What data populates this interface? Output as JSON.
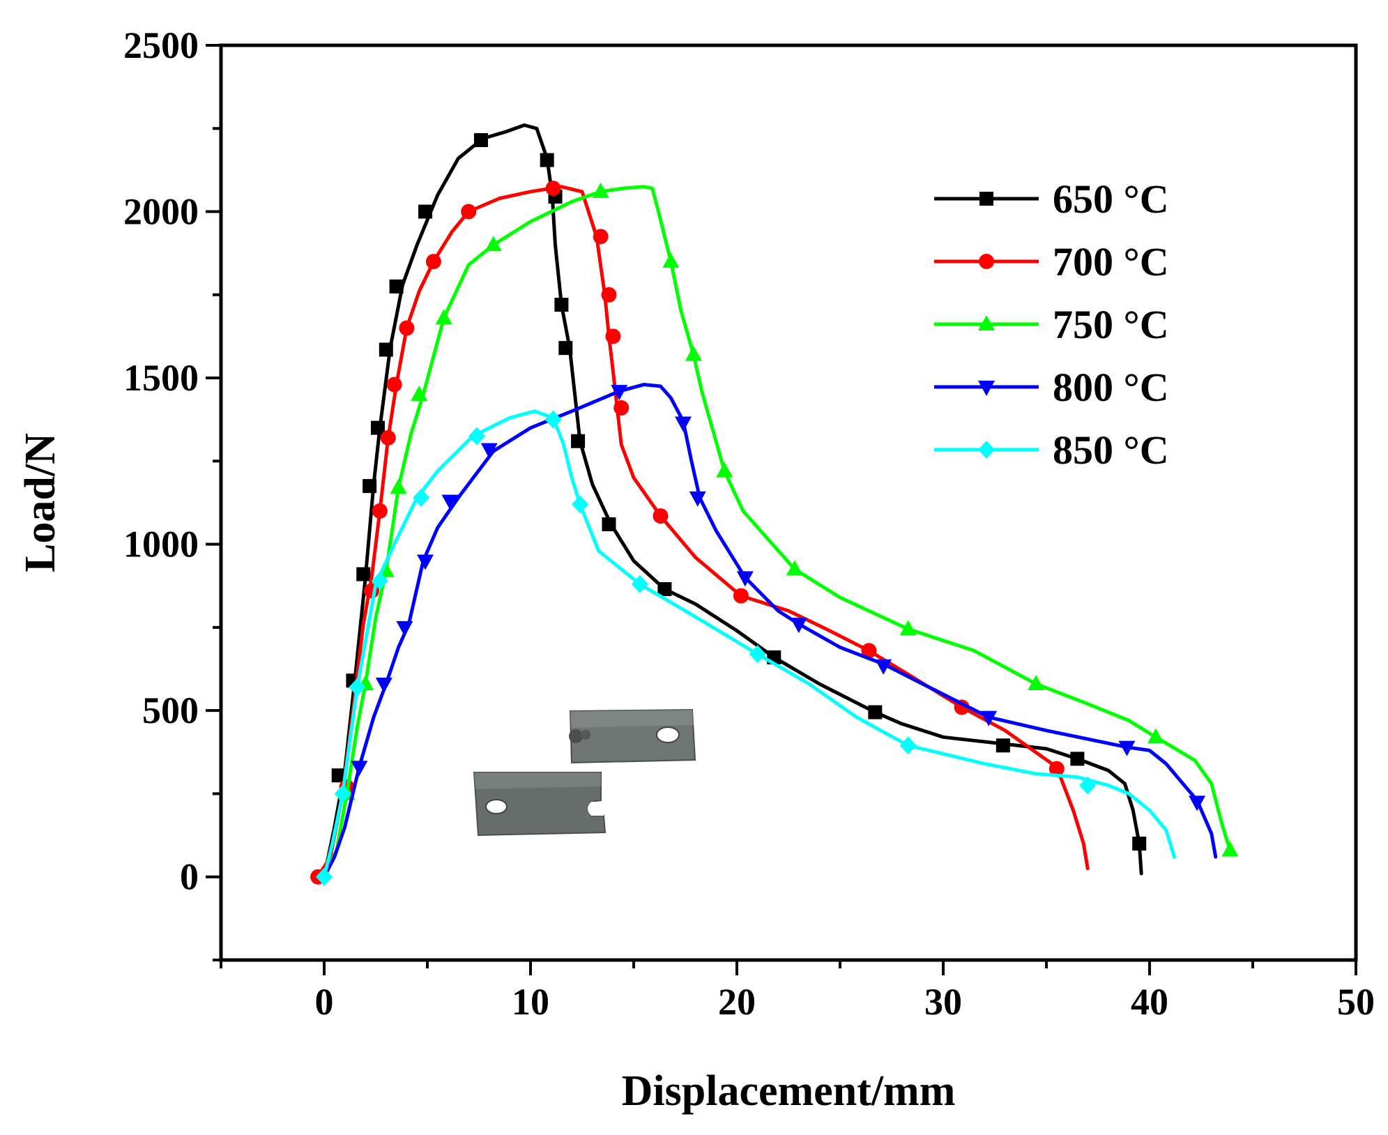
{
  "chart_data": {
    "type": "line",
    "title": "",
    "xlabel": "Displacement/mm",
    "ylabel": "Load/N",
    "xlim": [
      -5,
      50
    ],
    "ylim": [
      -250,
      2500
    ],
    "xticks": [
      "0",
      "10",
      "20",
      "30",
      "40",
      "50"
    ],
    "yticks": [
      "0",
      "500",
      "1000",
      "1500",
      "2000",
      "2500"
    ],
    "legend_position": "top-right",
    "inset": "photograph of two fractured lap-joint specimens",
    "series": [
      {
        "name": "650 °C",
        "color": "#000000",
        "marker": "square",
        "x": [
          0,
          0.5,
          1,
          1.5,
          2,
          2.4,
          2.7,
          3.2,
          3.8,
          4.5,
          5.5,
          6.5,
          7.7,
          8.8,
          9.7,
          10.3,
          10.8,
          11.05,
          11.2,
          11.5,
          11.9,
          12.4,
          13,
          13.9,
          15,
          16.5,
          18,
          20,
          21.8,
          24,
          26.7,
          28,
          30,
          32.9,
          35,
          36.5,
          38,
          38.8,
          39.2,
          39.5,
          39.6
        ],
        "y": [
          0,
          150,
          320,
          600,
          900,
          1180,
          1350,
          1590,
          1780,
          1900,
          2050,
          2160,
          2220,
          2240,
          2260,
          2250,
          2160,
          2050,
          1900,
          1720,
          1590,
          1310,
          1180,
          1060,
          950,
          865,
          820,
          740,
          660,
          580,
          495,
          460,
          420,
          400,
          385,
          355,
          320,
          280,
          200,
          100,
          10
        ],
        "marker_x": [
          0.7,
          1.4,
          1.9,
          2.2,
          2.6,
          3.0,
          3.5,
          4.9,
          7.6,
          10.8,
          11.2,
          11.5,
          11.7,
          12.3,
          13.8,
          16.5,
          21.8,
          26.7,
          32.9,
          36.5,
          39.5
        ],
        "marker_y": [
          305,
          590,
          910,
          1175,
          1350,
          1585,
          1775,
          2000,
          2215,
          2155,
          2045,
          1720,
          1590,
          1310,
          1060,
          865,
          660,
          495,
          395,
          355,
          100
        ]
      },
      {
        "name": "700 °C",
        "color": "#ff0000",
        "marker": "circle",
        "x": [
          -0.3,
          0.3,
          0.9,
          1.4,
          1.9,
          2.3,
          2.7,
          3.1,
          3.5,
          4.0,
          4.6,
          5.3,
          6.2,
          7.0,
          8.5,
          10,
          11.5,
          12.5,
          13.2,
          13.6,
          13.8,
          14.0,
          14.2,
          14.4,
          15,
          16.3,
          18,
          20.2,
          22.5,
          24.5,
          26.4,
          28,
          30.9,
          33,
          35.5,
          36.3,
          36.8,
          37.0
        ],
        "y": [
          0,
          60,
          250,
          500,
          760,
          900,
          1100,
          1320,
          1480,
          1650,
          1760,
          1850,
          1940,
          2000,
          2040,
          2060,
          2075,
          2060,
          1925,
          1750,
          1625,
          1520,
          1410,
          1300,
          1200,
          1085,
          960,
          845,
          800,
          740,
          680,
          620,
          510,
          440,
          330,
          200,
          100,
          25
        ],
        "marker_x": [
          -0.3,
          1.1,
          2.3,
          2.7,
          3.1,
          3.4,
          4.0,
          5.3,
          7.0,
          11.1,
          13.4,
          13.8,
          14.0,
          14.4,
          16.3,
          20.2,
          26.4,
          30.9,
          35.5
        ],
        "marker_y": [
          0,
          270,
          860,
          1100,
          1320,
          1480,
          1650,
          1850,
          2000,
          2070,
          1925,
          1750,
          1625,
          1410,
          1085,
          845,
          680,
          510,
          325
        ]
      },
      {
        "name": "750 °C",
        "color": "#00ff00",
        "marker": "triangle-up",
        "x": [
          0,
          0.6,
          1.1,
          1.6,
          2.0,
          2.5,
          3.0,
          3.6,
          4.2,
          4.8,
          5.8,
          7,
          8.2,
          10,
          12,
          13.4,
          14.5,
          15.5,
          15.9,
          16.2,
          16.8,
          17.3,
          17.9,
          18.3,
          19.4,
          20.3,
          22.8,
          25,
          28.3,
          31.5,
          34.5,
          37,
          39,
          40.3,
          42.2,
          43,
          43.5,
          43.9
        ],
        "y": [
          0,
          80,
          250,
          450,
          580,
          780,
          920,
          1170,
          1330,
          1450,
          1680,
          1840,
          1900,
          1970,
          2030,
          2060,
          2070,
          2075,
          2070,
          2000,
          1850,
          1700,
          1570,
          1460,
          1220,
          1100,
          925,
          840,
          745,
          680,
          580,
          520,
          470,
          420,
          350,
          280,
          160,
          80
        ],
        "marker_x": [
          1.1,
          2.0,
          3.0,
          3.6,
          4.6,
          5.8,
          8.2,
          13.4,
          16.8,
          17.9,
          19.4,
          22.8,
          28.3,
          34.5,
          40.3,
          43.9
        ],
        "marker_y": [
          250,
          580,
          920,
          1170,
          1450,
          1680,
          1900,
          2060,
          1850,
          1570,
          1220,
          925,
          745,
          580,
          420,
          80
        ]
      },
      {
        "name": "800 °C",
        "color": "#0000ff",
        "marker": "triangle-down",
        "x": [
          0,
          0.5,
          1.0,
          1.7,
          2.4,
          3.0,
          3.6,
          4.1,
          4.8,
          5.5,
          6.5,
          8.2,
          10,
          12,
          14.3,
          15.5,
          16.3,
          16.8,
          17.4,
          17.8,
          18.2,
          19,
          20.4,
          22,
          23,
          25,
          27.1,
          29,
          32.2,
          35,
          38.9,
          40,
          40.8,
          42.3,
          43.0,
          43.2
        ],
        "y": [
          0,
          60,
          150,
          330,
          480,
          580,
          690,
          760,
          950,
          1050,
          1140,
          1280,
          1350,
          1400,
          1460,
          1480,
          1475,
          1440,
          1370,
          1250,
          1140,
          1040,
          900,
          800,
          760,
          690,
          640,
          580,
          480,
          440,
          390,
          380,
          340,
          230,
          130,
          60
        ],
        "marker_x": [
          1.7,
          2.9,
          3.9,
          4.9,
          6.1,
          8.0,
          14.3,
          17.4,
          18.1,
          20.4,
          23.0,
          27.1,
          32.2,
          38.9,
          42.3
        ],
        "marker_y": [
          330,
          580,
          750,
          950,
          1130,
          1285,
          1460,
          1365,
          1140,
          900,
          760,
          635,
          480,
          390,
          225
        ]
      },
      {
        "name": "850 °C",
        "color": "#00ffff",
        "marker": "diamond",
        "x": [
          0,
          0.4,
          0.9,
          1.6,
          2.5,
          3.4,
          4.5,
          5.5,
          7.2,
          9,
          10.2,
          11.1,
          11.6,
          12.0,
          12.4,
          13.3,
          15.3,
          17.5,
          21,
          23.5,
          25.8,
          28.3,
          30,
          32,
          34.5,
          36.5,
          38,
          39,
          40,
          40.8,
          41.2
        ],
        "y": [
          0,
          100,
          250,
          570,
          880,
          1000,
          1140,
          1220,
          1325,
          1380,
          1400,
          1380,
          1300,
          1200,
          1120,
          980,
          880,
          800,
          670,
          580,
          480,
          395,
          370,
          340,
          310,
          300,
          275,
          250,
          200,
          140,
          60
        ],
        "marker_x": [
          0,
          0.9,
          1.6,
          2.7,
          4.7,
          7.4,
          11.1,
          12.4,
          15.3,
          21.0,
          28.3,
          37.0
        ],
        "marker_y": [
          0,
          250,
          570,
          890,
          1140,
          1325,
          1375,
          1120,
          880,
          670,
          395,
          275
        ]
      }
    ]
  }
}
